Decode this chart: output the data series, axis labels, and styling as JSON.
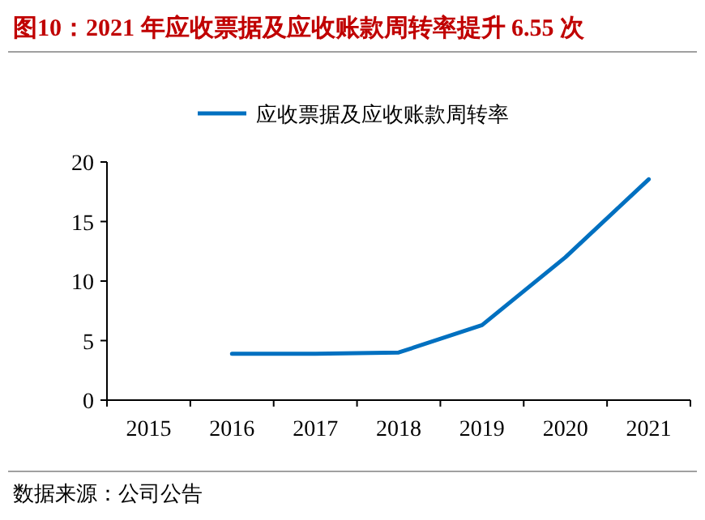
{
  "chart_data": {
    "type": "line",
    "title": "图10：2021 年应收票据及应收账款周转率提升 6.55 次",
    "categories": [
      "2015",
      "2016",
      "2017",
      "2018",
      "2019",
      "2020",
      "2021"
    ],
    "series": [
      {
        "name": "应收票据及应收账款周转率",
        "color": "#0070c0",
        "values": [
          null,
          3.9,
          3.9,
          4.0,
          6.3,
          12.0,
          18.55
        ]
      }
    ],
    "ylim": [
      0,
      20
    ],
    "yticks": [
      0,
      5,
      10,
      15,
      20
    ],
    "grid": false,
    "legend": "top",
    "marker": "none",
    "line_style": "solid",
    "annotations": [
      "数据来源：公司公告"
    ]
  }
}
